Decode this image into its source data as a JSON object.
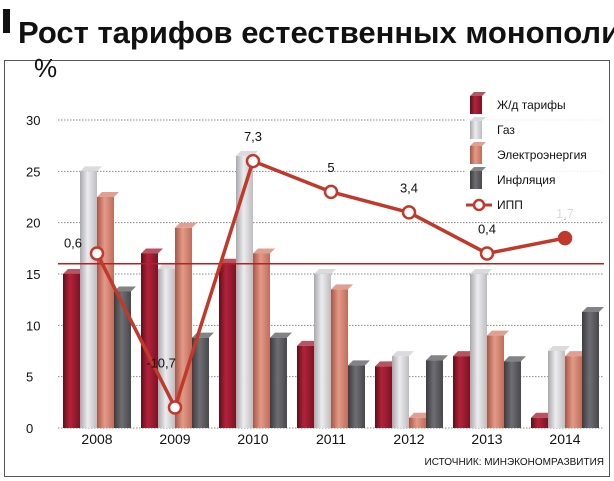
{
  "chart_data": {
    "type": "bar",
    "title": "Рост тарифов естественных монополий",
    "unit": "%",
    "categories": [
      "2008",
      "2009",
      "2010",
      "2011",
      "2012",
      "2013",
      "2014"
    ],
    "ylim": [
      0,
      30
    ],
    "yticks": [
      0,
      5,
      10,
      15,
      20,
      25,
      30
    ],
    "grid": true,
    "legend_position": "top-right",
    "series": [
      {
        "name": "Ж/д тарифы",
        "kind": "bar",
        "color": "#9e1b2c",
        "values": [
          15,
          17,
          16,
          8,
          6,
          7,
          1
        ]
      },
      {
        "name": "Газ",
        "kind": "bar",
        "color": "#cfcfd3",
        "values": [
          25,
          15.5,
          26.5,
          15,
          7,
          15,
          7.5
        ]
      },
      {
        "name": "Электроэнергия",
        "kind": "bar",
        "color": "#d47f6e",
        "values": [
          22.5,
          19.5,
          17,
          13.5,
          1,
          9,
          7
        ]
      },
      {
        "name": "Инфляция",
        "kind": "bar",
        "color": "#5a5a5e",
        "values": [
          13.3,
          8.8,
          8.8,
          6.1,
          6.6,
          6.5,
          11.3
        ]
      },
      {
        "name": "ИПП",
        "kind": "line",
        "color": "#c0392b",
        "values": [
          17,
          2,
          26,
          23,
          21,
          17,
          18.5
        ],
        "point_labels": [
          "0,6",
          "-10,7",
          "7,3",
          "5",
          "3,4",
          "0,4",
          "1,7"
        ]
      }
    ],
    "reference_line": {
      "value": 16,
      "color": "#b22222"
    },
    "source": "ИСТОЧНИК: МИНЭКОНОМРАЗВИТИЯ"
  }
}
